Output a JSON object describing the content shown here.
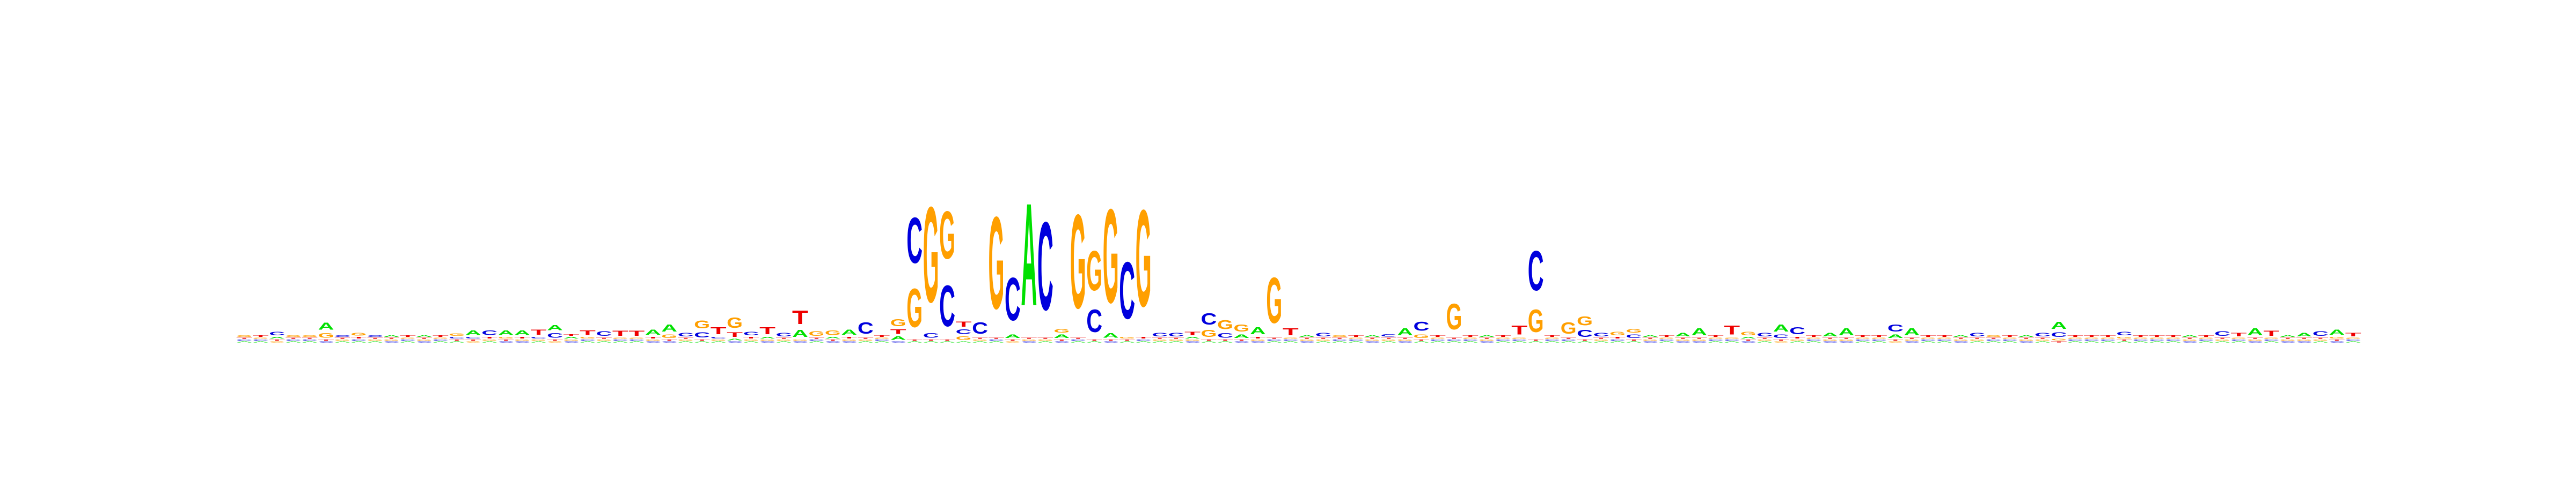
{
  "chart_data": {
    "type": "sequence-logo",
    "letters": [
      "A",
      "C",
      "G",
      "T"
    ],
    "colors": {
      "A": "#00e000",
      "C": "#0000dd",
      "G": "#ff9f00",
      "T": "#ee0000"
    },
    "ylim": [
      0,
      2
    ],
    "positions": [
      {
        "A": 0.02,
        "C": 0.02,
        "G": 0.03,
        "T": 0.02
      },
      {
        "A": 0.02,
        "C": 0.02,
        "G": 0.02,
        "T": 0.03
      },
      {
        "A": 0.03,
        "C": 0.06,
        "G": 0.02,
        "T": 0.02
      },
      {
        "A": 0.02,
        "C": 0.02,
        "G": 0.03,
        "T": 0.02
      },
      {
        "A": 0.02,
        "C": 0.02,
        "G": 0.03,
        "T": 0.02
      },
      {
        "A": 0.12,
        "C": 0.02,
        "G": 0.08,
        "T": 0.02
      },
      {
        "A": 0.02,
        "C": 0.03,
        "G": 0.02,
        "T": 0.02
      },
      {
        "A": 0.02,
        "C": 0.02,
        "G": 0.05,
        "T": 0.03
      },
      {
        "A": 0.02,
        "C": 0.03,
        "G": 0.02,
        "T": 0.02
      },
      {
        "A": 0.03,
        "C": 0.02,
        "G": 0.02,
        "T": 0.02
      },
      {
        "A": 0.02,
        "C": 0.02,
        "G": 0.02,
        "T": 0.03
      },
      {
        "A": 0.03,
        "C": 0.02,
        "G": 0.02,
        "T": 0.02
      },
      {
        "A": 0.02,
        "C": 0.02,
        "G": 0.02,
        "T": 0.03
      },
      {
        "A": 0.02,
        "C": 0.03,
        "G": 0.04,
        "T": 0.02
      },
      {
        "A": 0.08,
        "C": 0.03,
        "G": 0.02,
        "T": 0.02
      },
      {
        "A": 0.02,
        "C": 0.08,
        "G": 0.02,
        "T": 0.03
      },
      {
        "A": 0.08,
        "C": 0.02,
        "G": 0.03,
        "T": 0.02
      },
      {
        "A": 0.08,
        "C": 0.02,
        "G": 0.02,
        "T": 0.03
      },
      {
        "A": 0.02,
        "C": 0.03,
        "G": 0.02,
        "T": 0.09
      },
      {
        "A": 0.09,
        "C": 0.08,
        "G": 0.02,
        "T": 0.02
      },
      {
        "A": 0.03,
        "C": 0.02,
        "G": 0.02,
        "T": 0.03
      },
      {
        "A": 0.02,
        "C": 0.02,
        "G": 0.03,
        "T": 0.08
      },
      {
        "A": 0.02,
        "C": 0.08,
        "G": 0.02,
        "T": 0.02
      },
      {
        "A": 0.02,
        "C": 0.02,
        "G": 0.02,
        "T": 0.09
      },
      {
        "A": 0.02,
        "C": 0.02,
        "G": 0.02,
        "T": 0.09
      },
      {
        "A": 0.09,
        "C": 0.02,
        "G": 0.02,
        "T": 0.03
      },
      {
        "A": 0.12,
        "C": 0.02,
        "G": 0.06,
        "T": 0.02
      },
      {
        "A": 0.02,
        "C": 0.06,
        "G": 0.02,
        "T": 0.02
      },
      {
        "A": 0.02,
        "C": 0.09,
        "G": 0.14,
        "T": 0.02
      },
      {
        "A": 0.02,
        "C": 0.03,
        "G": 0.02,
        "T": 0.12
      },
      {
        "A": 0.03,
        "C": 0.02,
        "G": 0.18,
        "T": 0.08
      },
      {
        "A": 0.02,
        "C": 0.06,
        "G": 0.02,
        "T": 0.03
      },
      {
        "A": 0.03,
        "C": 0.02,
        "G": 0.02,
        "T": 0.12
      },
      {
        "A": 0.02,
        "C": 0.06,
        "G": 0.02,
        "T": 0.02
      },
      {
        "A": 0.12,
        "C": 0.02,
        "G": 0.02,
        "T": 0.24
      },
      {
        "A": 0.02,
        "C": 0.02,
        "G": 0.08,
        "T": 0.02
      },
      {
        "A": 0.03,
        "C": 0.02,
        "G": 0.08,
        "T": 0.02
      },
      {
        "A": 0.09,
        "C": 0.02,
        "G": 0.02,
        "T": 0.03
      },
      {
        "A": 0.02,
        "C": 0.2,
        "G": 0.02,
        "T": 0.02
      },
      {
        "A": 0.02,
        "C": 0.02,
        "G": 0.02,
        "T": 0.03
      },
      {
        "A": 0.06,
        "C": 0.02,
        "G": 0.12,
        "T": 0.08
      },
      {
        "A": 0.02,
        "C": 0.8,
        "G": 0.68,
        "T": 0.02
      },
      {
        "A": 0.02,
        "C": 0.08,
        "G": 1.68,
        "T": 0.02
      },
      {
        "A": 0.02,
        "C": 0.72,
        "G": 0.84,
        "T": 0.02
      },
      {
        "A": 0.02,
        "C": 0.08,
        "G": 0.06,
        "T": 0.09
      },
      {
        "A": 0.02,
        "C": 0.2,
        "G": 0.02,
        "T": 0.02
      },
      {
        "A": 0.02,
        "C": 0.02,
        "G": 1.62,
        "T": 0.02
      },
      {
        "A": 0.06,
        "C": 0.75,
        "G": 0.02,
        "T": 0.02
      },
      {
        "A": 1.8,
        "C": 0.02,
        "G": 0.02,
        "T": 0.02
      },
      {
        "A": 0.02,
        "C": 1.55,
        "G": 0.02,
        "T": 0.02
      },
      {
        "A": 0.06,
        "C": 0.02,
        "G": 0.06,
        "T": 0.02
      },
      {
        "A": 0.02,
        "C": 0.02,
        "G": 1.65,
        "T": 0.02
      },
      {
        "A": 0.02,
        "C": 0.4,
        "G": 0.7,
        "T": 0.02
      },
      {
        "A": 0.08,
        "C": 0.02,
        "G": 1.65,
        "T": 0.02
      },
      {
        "A": 0.02,
        "C": 1.0,
        "G": 0.03,
        "T": 0.02
      },
      {
        "A": 0.02,
        "C": 0.02,
        "G": 1.7,
        "T": 0.03
      },
      {
        "A": 0.02,
        "C": 0.06,
        "G": 0.02,
        "T": 0.02
      },
      {
        "A": 0.02,
        "C": 0.06,
        "G": 0.02,
        "T": 0.02
      },
      {
        "A": 0.03,
        "C": 0.02,
        "G": 0.02,
        "T": 0.06
      },
      {
        "A": 0.02,
        "C": 0.2,
        "G": 0.12,
        "T": 0.02
      },
      {
        "A": 0.02,
        "C": 0.08,
        "G": 0.16,
        "T": 0.02
      },
      {
        "A": 0.06,
        "C": 0.02,
        "G": 0.12,
        "T": 0.02
      },
      {
        "A": 0.12,
        "C": 0.02,
        "G": 0.02,
        "T": 0.03
      },
      {
        "A": 0.02,
        "C": 0.02,
        "G": 0.8,
        "T": 0.02
      },
      {
        "A": 0.02,
        "C": 0.02,
        "G": 0.02,
        "T": 0.12
      },
      {
        "A": 0.03,
        "C": 0.02,
        "G": 0.02,
        "T": 0.02
      },
      {
        "A": 0.02,
        "C": 0.06,
        "G": 0.02,
        "T": 0.02
      },
      {
        "A": 0.02,
        "C": 0.02,
        "G": 0.03,
        "T": 0.02
      },
      {
        "A": 0.02,
        "C": 0.02,
        "G": 0.02,
        "T": 0.03
      },
      {
        "A": 0.03,
        "C": 0.02,
        "G": 0.02,
        "T": 0.02
      },
      {
        "A": 0.02,
        "C": 0.04,
        "G": 0.02,
        "T": 0.02
      },
      {
        "A": 0.12,
        "C": 0.02,
        "G": 0.02,
        "T": 0.02
      },
      {
        "A": 0.02,
        "C": 0.16,
        "G": 0.06,
        "T": 0.02
      },
      {
        "A": 0.02,
        "C": 0.02,
        "G": 0.02,
        "T": 0.03
      },
      {
        "A": 0.02,
        "C": 0.02,
        "G": 0.45,
        "T": 0.02
      },
      {
        "A": 0.02,
        "C": 0.02,
        "G": 0.02,
        "T": 0.03
      },
      {
        "A": 0.03,
        "C": 0.02,
        "G": 0.02,
        "T": 0.02
      },
      {
        "A": 0.02,
        "C": 0.02,
        "G": 0.02,
        "T": 0.03
      },
      {
        "A": 0.02,
        "C": 0.02,
        "G": 0.02,
        "T": 0.16
      },
      {
        "A": 0.02,
        "C": 0.7,
        "G": 0.4,
        "T": 0.02
      },
      {
        "A": 0.02,
        "C": 0.02,
        "G": 0.02,
        "T": 0.03
      },
      {
        "A": 0.02,
        "C": 0.02,
        "G": 0.2,
        "T": 0.02
      },
      {
        "A": 0.02,
        "C": 0.12,
        "G": 0.16,
        "T": 0.02
      },
      {
        "A": 0.02,
        "C": 0.06,
        "G": 0.02,
        "T": 0.02
      },
      {
        "A": 0.02,
        "C": 0.02,
        "G": 0.06,
        "T": 0.03
      },
      {
        "A": 0.02,
        "C": 0.06,
        "G": 0.06,
        "T": 0.02
      },
      {
        "A": 0.03,
        "C": 0.02,
        "G": 0.02,
        "T": 0.02
      },
      {
        "A": 0.02,
        "C": 0.02,
        "G": 0.02,
        "T": 0.03
      },
      {
        "A": 0.06,
        "C": 0.02,
        "G": 0.02,
        "T": 0.02
      },
      {
        "A": 0.12,
        "C": 0.02,
        "G": 0.02,
        "T": 0.02
      },
      {
        "A": 0.02,
        "C": 0.02,
        "G": 0.02,
        "T": 0.03
      },
      {
        "A": 0.02,
        "C": 0.02,
        "G": 0.02,
        "T": 0.16
      },
      {
        "A": 0.03,
        "C": 0.02,
        "G": 0.06,
        "T": 0.02
      },
      {
        "A": 0.02,
        "C": 0.06,
        "G": 0.02,
        "T": 0.02
      },
      {
        "A": 0.12,
        "C": 0.06,
        "G": 0.02,
        "T": 0.02
      },
      {
        "A": 0.02,
        "C": 0.12,
        "G": 0.02,
        "T": 0.03
      },
      {
        "A": 0.02,
        "C": 0.02,
        "G": 0.02,
        "T": 0.03
      },
      {
        "A": 0.06,
        "C": 0.02,
        "G": 0.02,
        "T": 0.02
      },
      {
        "A": 0.12,
        "C": 0.02,
        "G": 0.02,
        "T": 0.02
      },
      {
        "A": 0.02,
        "C": 0.02,
        "G": 0.02,
        "T": 0.03
      },
      {
        "A": 0.02,
        "C": 0.02,
        "G": 0.02,
        "T": 0.03
      },
      {
        "A": 0.06,
        "C": 0.12,
        "G": 0.02,
        "T": 0.02
      },
      {
        "A": 0.12,
        "C": 0.02,
        "G": 0.02,
        "T": 0.02
      },
      {
        "A": 0.02,
        "C": 0.02,
        "G": 0.02,
        "T": 0.03
      },
      {
        "A": 0.02,
        "C": 0.02,
        "G": 0.02,
        "T": 0.03
      },
      {
        "A": 0.03,
        "C": 0.02,
        "G": 0.02,
        "T": 0.02
      },
      {
        "A": 0.02,
        "C": 0.06,
        "G": 0.02,
        "T": 0.02
      },
      {
        "A": 0.02,
        "C": 0.02,
        "G": 0.03,
        "T": 0.02
      },
      {
        "A": 0.02,
        "C": 0.02,
        "G": 0.02,
        "T": 0.03
      },
      {
        "A": 0.03,
        "C": 0.02,
        "G": 0.02,
        "T": 0.02
      },
      {
        "A": 0.02,
        "C": 0.06,
        "G": 0.02,
        "T": 0.02
      },
      {
        "A": 0.12,
        "C": 0.08,
        "G": 0.03,
        "T": 0.02
      },
      {
        "A": 0.02,
        "C": 0.02,
        "G": 0.02,
        "T": 0.03
      },
      {
        "A": 0.02,
        "C": 0.02,
        "G": 0.02,
        "T": 0.03
      },
      {
        "A": 0.02,
        "C": 0.02,
        "G": 0.02,
        "T": 0.03
      },
      {
        "A": 0.02,
        "C": 0.06,
        "G": 0.03,
        "T": 0.02
      },
      {
        "A": 0.02,
        "C": 0.02,
        "G": 0.02,
        "T": 0.03
      },
      {
        "A": 0.02,
        "C": 0.02,
        "G": 0.02,
        "T": 0.03
      },
      {
        "A": 0.02,
        "C": 0.02,
        "G": 0.02,
        "T": 0.03
      },
      {
        "A": 0.03,
        "C": 0.02,
        "G": 0.02,
        "T": 0.02
      },
      {
        "A": 0.02,
        "C": 0.02,
        "G": 0.02,
        "T": 0.03
      },
      {
        "A": 0.02,
        "C": 0.08,
        "G": 0.02,
        "T": 0.02
      },
      {
        "A": 0.02,
        "C": 0.02,
        "G": 0.02,
        "T": 0.06
      },
      {
        "A": 0.12,
        "C": 0.02,
        "G": 0.02,
        "T": 0.02
      },
      {
        "A": 0.02,
        "C": 0.02,
        "G": 0.02,
        "T": 0.09
      },
      {
        "A": 0.03,
        "C": 0.02,
        "G": 0.02,
        "T": 0.02
      },
      {
        "A": 0.06,
        "C": 0.02,
        "G": 0.02,
        "T": 0.02
      },
      {
        "A": 0.02,
        "C": 0.08,
        "G": 0.02,
        "T": 0.02
      },
      {
        "A": 0.09,
        "C": 0.02,
        "G": 0.03,
        "T": 0.02
      },
      {
        "A": 0.02,
        "C": 0.02,
        "G": 0.02,
        "T": 0.06
      }
    ]
  }
}
